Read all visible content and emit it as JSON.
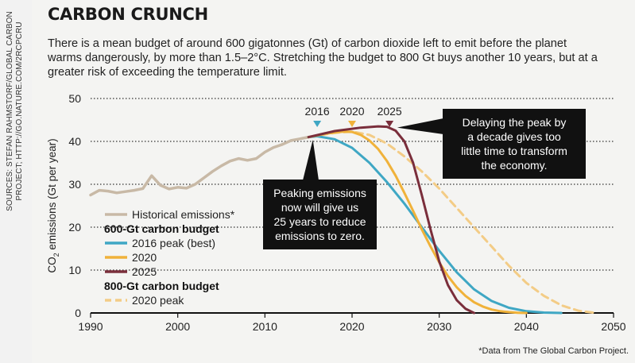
{
  "credit": "SOURCES: STEFAN RAHMSTORF/GLOBAL CARBON\nPROJECT; HTTP://GO.NATURE.COM/2RCPCRU",
  "title": "CARBON CRUNCH",
  "subtitle": "There is a mean budget of around 600 gigatonnes (Gt) of carbon dioxide left to emit before the planet warms dangerously, by more than 1.5–2°C. Stretching the budget to 800 Gt buys another 10 years, but at a greater risk of exceeding the temperature limit.",
  "footnote": "*Data from The Global Carbon Project.",
  "colors": {
    "historical": "#c8b9a6",
    "best2016": "#3fa7c4",
    "peak2020": "#f0b23a",
    "peak2025": "#7a2e3b",
    "peak2020_800": "#f3cc86"
  },
  "chart_data": {
    "type": "line",
    "xlabel": "",
    "ylabel": "CO2 emissions (Gt per year)",
    "ylabel_main": "CO",
    "ylabel_sub": "2",
    "ylabel_rest": " emissions (Gt per year)",
    "xlim": [
      1990,
      2050
    ],
    "ylim": [
      0,
      50
    ],
    "x_ticks": [
      "1990",
      "2000",
      "2010",
      "2020",
      "2030",
      "2040",
      "2050"
    ],
    "y_ticks": [
      "0",
      "10",
      "20",
      "30",
      "40",
      "50"
    ],
    "grid": "horizontal dotted",
    "series": [
      {
        "name": "Historical emissions*",
        "color": "#c8b9a6",
        "style": "solid",
        "x": [
          1990,
          1991,
          1992,
          1993,
          1994,
          1995,
          1996,
          1997,
          1998,
          1999,
          2000,
          2001,
          2002,
          2003,
          2004,
          2005,
          2006,
          2007,
          2008,
          2009,
          2010,
          2011,
          2012,
          2013,
          2014,
          2015
        ],
        "y": [
          27.5,
          28.6,
          28.4,
          28.0,
          28.3,
          28.6,
          29.0,
          32.0,
          29.8,
          28.9,
          29.3,
          29.1,
          30.0,
          31.5,
          33.0,
          34.3,
          35.4,
          36.0,
          35.6,
          36.0,
          37.5,
          38.6,
          39.3,
          40.2,
          40.6,
          41.0
        ]
      },
      {
        "name": "2016 peak (best)",
        "group": "600-Gt carbon budget",
        "color": "#3fa7c4",
        "style": "solid",
        "x": [
          2015,
          2016,
          2018,
          2020,
          2022,
          2024,
          2026,
          2028,
          2030,
          2032,
          2034,
          2036,
          2038,
          2040,
          2042,
          2044
        ],
        "y": [
          41.0,
          41.2,
          40.5,
          38.5,
          35.0,
          30.5,
          25.5,
          20.0,
          14.5,
          9.5,
          5.5,
          2.8,
          1.2,
          0.4,
          0.1,
          0
        ]
      },
      {
        "name": "2020",
        "group": "600-Gt carbon budget",
        "color": "#f0b23a",
        "style": "solid",
        "x": [
          2015,
          2017,
          2019,
          2020,
          2021,
          2022,
          2023,
          2024,
          2025,
          2026,
          2027,
          2028,
          2029,
          2030,
          2031,
          2032,
          2033,
          2034,
          2035,
          2036,
          2037,
          2038,
          2039,
          2040
        ],
        "y": [
          41.0,
          41.8,
          42.3,
          42.2,
          41.5,
          40.2,
          38.2,
          35.4,
          32.0,
          28.0,
          23.8,
          19.5,
          15.5,
          11.8,
          8.6,
          6.0,
          4.0,
          2.5,
          1.5,
          0.8,
          0.4,
          0.2,
          0.05,
          0
        ]
      },
      {
        "name": "2025",
        "group": "600-Gt carbon budget",
        "color": "#7a2e3b",
        "style": "solid",
        "x": [
          2015,
          2018,
          2021,
          2023,
          2024,
          2025,
          2026,
          2027,
          2028,
          2029,
          2030,
          2031,
          2032,
          2033,
          2034
        ],
        "y": [
          41.0,
          42.4,
          43.2,
          43.5,
          43.4,
          42.5,
          40.0,
          35.0,
          27.5,
          19.5,
          12.0,
          6.5,
          3.0,
          1.0,
          0
        ]
      },
      {
        "name": "2020 peak",
        "group": "800-Gt carbon budget",
        "color": "#f3cc86",
        "style": "dashed",
        "x": [
          2015,
          2018,
          2020,
          2022,
          2024,
          2026,
          2028,
          2030,
          2032,
          2034,
          2036,
          2038,
          2040,
          2042,
          2044,
          2046,
          2048
        ],
        "y": [
          41.0,
          42.0,
          42.3,
          41.5,
          39.5,
          36.5,
          33.0,
          29.0,
          24.5,
          20.0,
          15.5,
          11.0,
          7.0,
          4.0,
          1.8,
          0.5,
          0
        ]
      }
    ],
    "legend": {
      "position": "bottom-left",
      "entries": [
        {
          "type": "item",
          "label": "Historical emissions*",
          "color": "#c8b9a6",
          "style": "solid"
        },
        {
          "type": "heading",
          "label": "600-Gt carbon budget"
        },
        {
          "type": "item",
          "label": "2016 peak (best)",
          "color": "#3fa7c4",
          "style": "solid"
        },
        {
          "type": "item",
          "label": "2020",
          "color": "#f0b23a",
          "style": "solid"
        },
        {
          "type": "item",
          "label": "2025",
          "color": "#7a2e3b",
          "style": "solid"
        },
        {
          "type": "heading",
          "label": "800-Gt carbon budget"
        },
        {
          "type": "item",
          "label": "2020 peak",
          "color": "#f3cc86",
          "style": "dashed"
        }
      ]
    },
    "peak_markers": [
      {
        "label": "2016",
        "x": 2016,
        "y": 41.2,
        "color": "#3fa7c4"
      },
      {
        "label": "2020",
        "x": 2020,
        "y": 42.3,
        "color": "#f0b23a"
      },
      {
        "label": "2025",
        "x": 2024.3,
        "y": 43.5,
        "color": "#7a2e3b"
      }
    ],
    "annotations": [
      {
        "lines": [
          "Peaking emissions",
          "now will give us",
          "25 years to reduce",
          "emissions to zero."
        ],
        "points_to": [
          2015.5,
          41.1
        ]
      },
      {
        "lines": [
          "Delaying the peak by",
          "a decade gives too",
          "little time to transform",
          "the economy."
        ],
        "points_to": [
          2025,
          43.4
        ]
      }
    ]
  }
}
